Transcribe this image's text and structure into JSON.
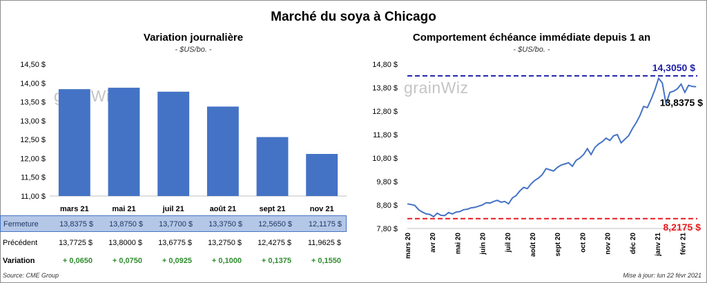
{
  "title": "Marché du soya à Chicago",
  "left_chart": {
    "title": "Variation journalière",
    "unit": "- $US/bo. -",
    "watermark": "grainWiz"
  },
  "right_chart": {
    "title": "Comportement échéance immédiate depuis 1 an",
    "unit": "- $US/bo. -",
    "watermark": "grainWiz",
    "high_label": "14,3050 $",
    "current_label": "13,8375 $",
    "low_label": "8,2175 $"
  },
  "table": {
    "rows": [
      {
        "label": "Fermeture",
        "values": [
          "13,8375  $",
          "13,8750  $",
          "13,7700  $",
          "13,3750  $",
          "12,5650  $",
          "12,1175  $"
        ]
      },
      {
        "label": "Précédent",
        "values": [
          "13,7725  $",
          "13,8000  $",
          "13,6775  $",
          "13,2750  $",
          "12,4275  $",
          "11,9625  $"
        ]
      },
      {
        "label": "Variation",
        "values": [
          "+ 0,0650",
          "+ 0,0750",
          "+ 0,0925",
          "+ 0,1000",
          "+ 0,1375",
          "+ 0,1550"
        ]
      }
    ]
  },
  "footer": {
    "source": "Source: CME Group",
    "updated": "Mise à jour: lun 22 févr 2021"
  },
  "colors": {
    "bar": "#4472c4",
    "line": "#4472c4",
    "high": "#1f1fa8",
    "low": "#e8191c",
    "positive": "#2e8b2e"
  },
  "chart_data": [
    {
      "type": "bar",
      "title": "Variation journalière",
      "categories": [
        "mars 21",
        "mai 21",
        "juil 21",
        "août 21",
        "sept 21",
        "nov 21"
      ],
      "values": [
        13.8375,
        13.875,
        13.77,
        13.375,
        12.565,
        12.1175
      ],
      "ylim": [
        11.0,
        14.5
      ],
      "yticks": [
        "11,00 $",
        "11,50 $",
        "12,00 $",
        "12,50 $",
        "13,00 $",
        "13,50 $",
        "14,00 $",
        "14,50 $"
      ],
      "grid": false
    },
    {
      "type": "line",
      "title": "Comportement échéance immédiate depuis 1 an",
      "xticks": [
        "mars 20",
        "avr 20",
        "mai 20",
        "juin 20",
        "juil 20",
        "août 20",
        "sept 20",
        "oct 20",
        "nov 20",
        "déc 20",
        "janv 21",
        "févr 21"
      ],
      "yticks": [
        "7,80 $",
        "8,80 $",
        "9,80 $",
        "10,80 $",
        "11,80 $",
        "12,80 $",
        "13,80 $",
        "14,80 $"
      ],
      "ylim": [
        7.8,
        14.8
      ],
      "reference_lines": [
        {
          "label": "14,3050 $",
          "value": 14.305
        },
        {
          "label": "8,2175 $",
          "value": 8.2175
        }
      ],
      "series": [
        {
          "x": [
            0,
            0.15,
            0.3,
            0.45,
            0.6,
            0.75,
            0.9,
            1.05,
            1.2,
            1.35,
            1.5,
            1.65,
            1.8,
            1.95,
            2.1,
            2.25,
            2.4,
            2.55,
            2.7,
            2.85,
            3.0,
            3.15,
            3.3,
            3.45,
            3.6,
            3.75,
            3.9,
            4.05,
            4.2,
            4.35,
            4.5,
            4.65,
            4.8,
            4.95,
            5.1,
            5.25,
            5.4,
            5.55,
            5.7,
            5.85,
            6.0,
            6.15,
            6.3,
            6.45,
            6.6,
            6.75,
            6.9,
            7.05,
            7.2,
            7.35,
            7.5,
            7.65,
            7.8,
            7.95,
            8.1,
            8.25,
            8.4,
            8.55,
            8.7,
            8.85,
            9.0,
            9.15,
            9.3,
            9.45,
            9.6,
            9.75,
            9.9,
            10.05,
            10.2,
            10.35,
            10.5,
            10.65,
            10.8,
            10.95,
            11.1,
            11.25,
            11.4,
            11.55
          ],
          "values": [
            8.85,
            8.82,
            8.78,
            8.6,
            8.5,
            8.42,
            8.4,
            8.3,
            8.45,
            8.36,
            8.35,
            8.48,
            8.42,
            8.5,
            8.52,
            8.6,
            8.62,
            8.68,
            8.7,
            8.75,
            8.8,
            8.9,
            8.88,
            8.95,
            9.0,
            8.92,
            8.95,
            8.85,
            9.1,
            9.2,
            9.4,
            9.55,
            9.5,
            9.7,
            9.85,
            9.95,
            10.1,
            10.35,
            10.3,
            10.25,
            10.4,
            10.5,
            10.55,
            10.6,
            10.45,
            10.7,
            10.8,
            10.95,
            11.2,
            10.95,
            11.25,
            11.4,
            11.5,
            11.65,
            11.55,
            11.75,
            11.8,
            11.45,
            11.6,
            11.75,
            12.05,
            12.3,
            12.6,
            13.0,
            12.95,
            13.3,
            13.7,
            14.2,
            14.0,
            13.1,
            13.6,
            13.65,
            13.75,
            13.95,
            13.6,
            13.9,
            13.85,
            13.84
          ]
        }
      ]
    }
  ]
}
